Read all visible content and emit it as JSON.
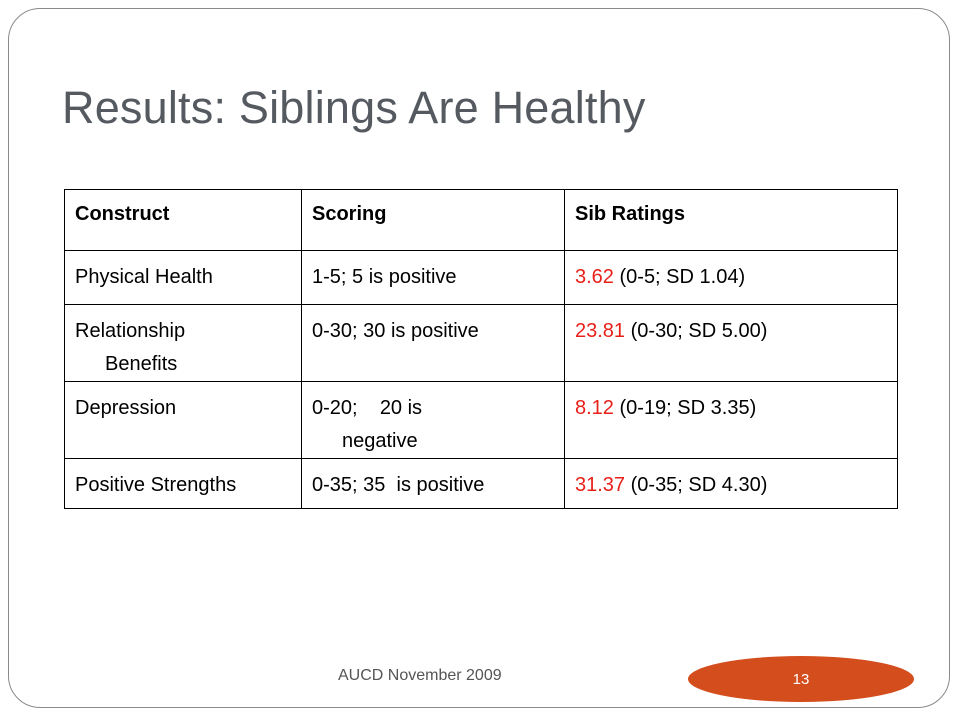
{
  "slide": {
    "title": "Results: Siblings Are Healthy",
    "footer": "AUCD November 2009",
    "page_number": "13"
  },
  "colors": {
    "title": "#555a60",
    "value_highlight": "#e8201a",
    "page_badge": "#d34d1d"
  },
  "table": {
    "headers": [
      "Construct",
      "Scoring",
      "Sib Ratings"
    ],
    "rows": [
      {
        "construct_line1": "Physical Health",
        "construct_line2": "",
        "scoring_line1": "1-5; 5 is positive",
        "scoring_line2": "",
        "value": "3.62",
        "detail": " (0-5; SD 1.04)"
      },
      {
        "construct_line1": "Relationship",
        "construct_line2": "Benefits",
        "scoring_line1": "0-30; 30 is positive",
        "scoring_line2": "",
        "value": "23.81",
        "detail": " (0-30; SD 5.00)"
      },
      {
        "construct_line1": "Depression",
        "construct_line2": "",
        "scoring_line1": "0-20;    20 is",
        "scoring_line2": "negative",
        "value": "8.12",
        "detail": " (0-19; SD 3.35)"
      },
      {
        "construct_line1": "Positive Strengths",
        "construct_line2": "",
        "scoring_line1": "0-35; 35  is positive",
        "scoring_line2": "",
        "value": "31.37",
        "detail": " (0-35; SD 4.30)"
      }
    ]
  }
}
